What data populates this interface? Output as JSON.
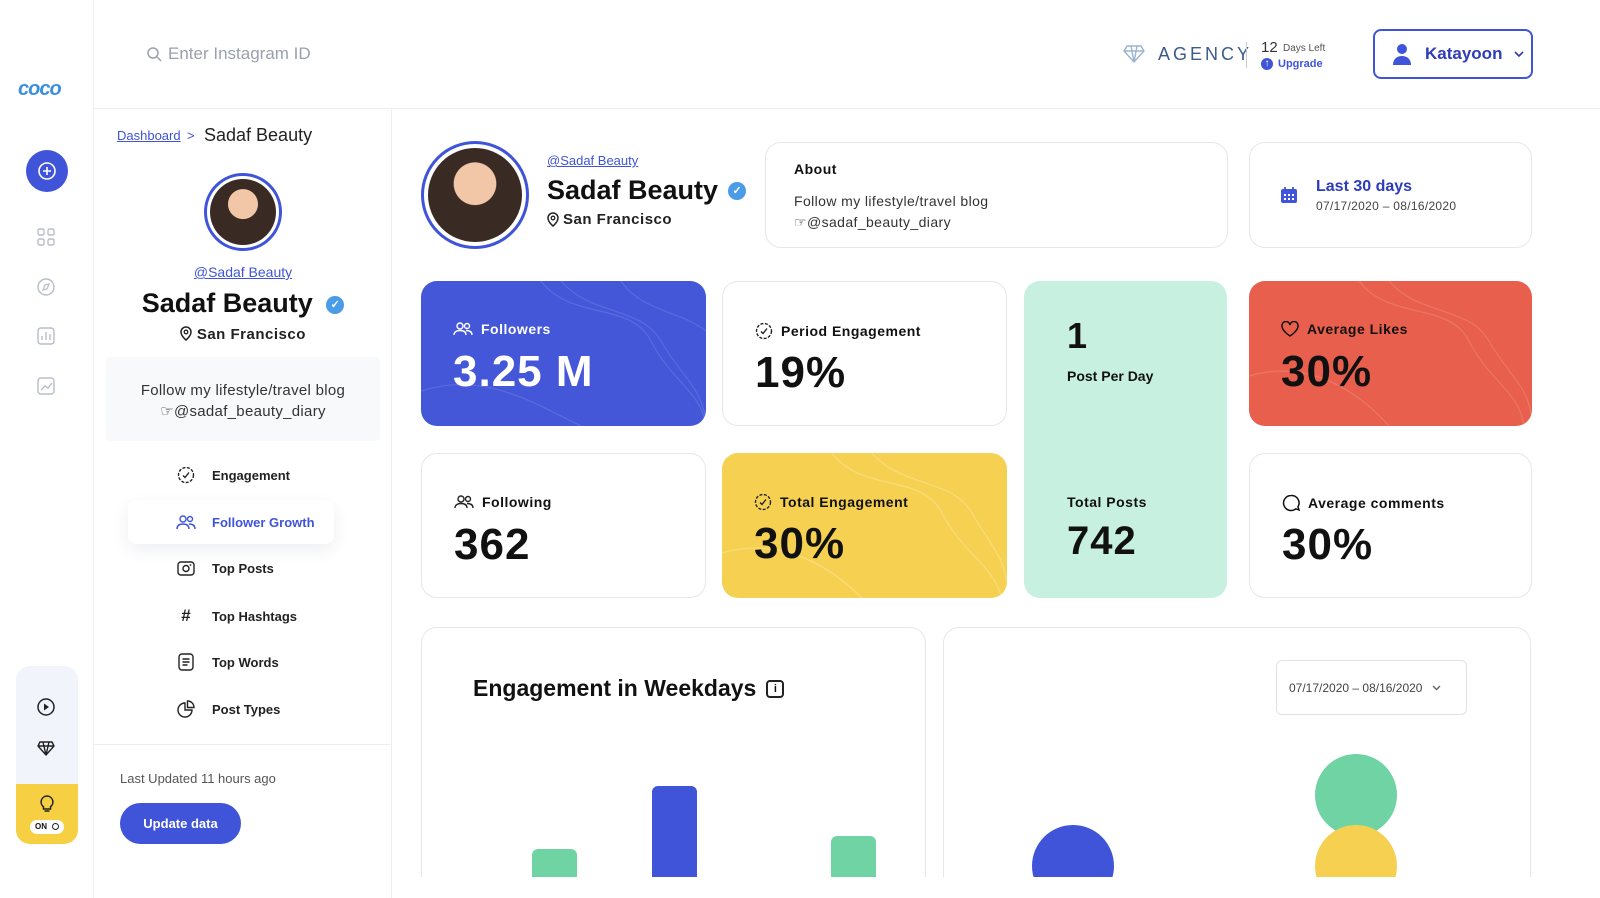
{
  "app": {
    "logo": "coco"
  },
  "search": {
    "placeholder": "Enter Instagram ID"
  },
  "header": {
    "plan": "AGENCY",
    "days_left_count": "12",
    "days_left_label": "Days Left",
    "upgrade_label": "Upgrade",
    "user_name": "Katayoon"
  },
  "breadcrumb": {
    "root": "Dashboard",
    "separator": ">",
    "current": "Sadaf Beauty"
  },
  "profile": {
    "handle": "@Sadaf Beauty",
    "name": "Sadaf Beauty",
    "location": "San Francisco",
    "bio_line1": "Follow my lifestyle/travel blog",
    "bio_line2": "@sadaf_beauty_diary"
  },
  "sidebar": {
    "items": [
      {
        "label": "Engagement",
        "icon": "engagement-icon"
      },
      {
        "label": "Follower Growth",
        "icon": "followers-icon"
      },
      {
        "label": "Top Posts",
        "icon": "posts-icon"
      },
      {
        "label": "Top Hashtags",
        "icon": "hashtag-icon"
      },
      {
        "label": "Top Words",
        "icon": "words-icon"
      },
      {
        "label": "Post Types",
        "icon": "pie-icon"
      }
    ],
    "active_index": 1,
    "last_updated": "Last Updated 11 hours ago",
    "update_button": "Update data",
    "toggle_label": "ON"
  },
  "about": {
    "title": "About"
  },
  "date_filter": {
    "label": "Last 30 days",
    "range": "07/17/2020 – 08/16/2020"
  },
  "stats": {
    "followers": {
      "label": "Followers",
      "value": "3.25 M"
    },
    "period_engagement": {
      "label": "Period Engagement",
      "value": "19%"
    },
    "posts_per_day": {
      "value": "1",
      "label": "Post Per Day"
    },
    "average_likes": {
      "label": "Average Likes",
      "value": "30%"
    },
    "following": {
      "label": "Following",
      "value": "362"
    },
    "total_engagement": {
      "label": "Total Engagement",
      "value": "30%"
    },
    "total_posts": {
      "label": "Total Posts",
      "value": "742"
    },
    "average_comments": {
      "label": "Average comments",
      "value": "30%"
    }
  },
  "charts": {
    "weekdays_title": "Engagement in Weekdays",
    "range_select": "07/17/2020 – 08/16/2020"
  },
  "colors": {
    "primary": "#3f54d8",
    "followers_card": "#4457d9",
    "engagement_card": "#f6d151",
    "posts_card": "#c8f0e0",
    "likes_card": "#e8604d",
    "green": "#6fd3a3",
    "yellow": "#f6d151"
  }
}
